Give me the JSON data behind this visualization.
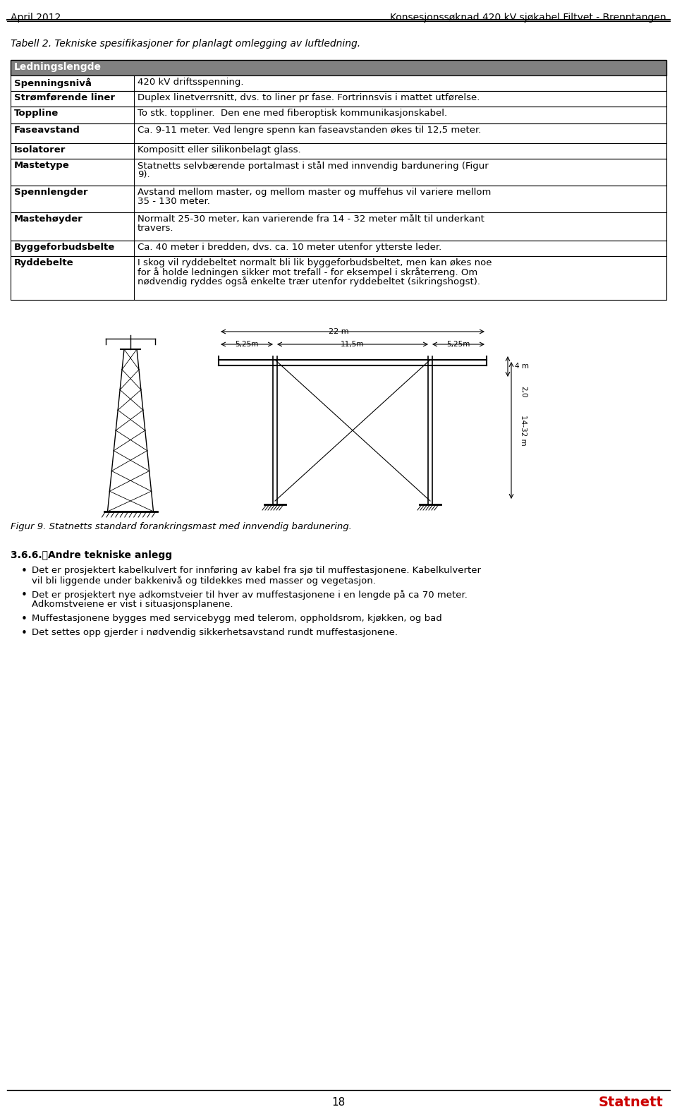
{
  "page_header_left": "April 2012",
  "page_header_right": "Konsesjonssøknad 420 kV sjøkabel Filtvet - Brenntangen",
  "table_caption": "Tabell 2. Tekniske spesifikasjoner for planlagt omlegging av luftledning.",
  "table_header": "Ledningslengde",
  "table_rows": [
    [
      "Spenningsnivå",
      "420 kV driftsspenning."
    ],
    [
      "Strømførende liner",
      "Duplex linetverrsnitt, dvs. to liner pr fase. Fortrinnsvis i mattet utførelse."
    ],
    [
      "Toppline",
      "To stk. toppliner.  Den ene med fiberoptisk kommunikasjonskabel."
    ],
    [
      "Faseavstand",
      "Ca. 9-11 meter. Ved lengre spenn kan faseavstanden økes til 12,5 meter."
    ],
    [
      "Isolatorer",
      "Kompositt eller silikonbelagt glass."
    ],
    [
      "Mastetype",
      "Statnetts selvbærende portalmast i stål med innvendig bardunering (Figur\n9)."
    ],
    [
      "Spennlengder",
      "Avstand mellom master, og mellom master og muffehus vil variere mellom\n35 - 130 meter."
    ],
    [
      "Mastehøyder",
      "Normalt 25-30 meter, kan varierende fra 14 - 32 meter målt til underkant\ntravers."
    ],
    [
      "Byggeforbudsbelte",
      "Ca. 40 meter i bredden, dvs. ca. 10 meter utenfor ytterste leder."
    ],
    [
      "Ryddebelte",
      "I skog vil ryddebeltet normalt bli lik byggeforbudsbeltet, men kan økes noe\nfor å holde ledningen sikker mot trefall - for eksempel i skråterreng. Om\nnødvendig ryddes også enkelte trær utenfor ryddebeltet (sikringshogst)."
    ]
  ],
  "figure_caption": "Figur 9. Statnetts standard forankringsmast med innvendig bardunering.",
  "section_header": "3.6.6.\tAndre tekniske anlegg",
  "bullets": [
    "Det er prosjektert kabelkulvert for innføring av kabel fra sjø til muffestasjonene. Kabelkulverter\nvil bli liggende under bakkenivå og tildekkes med masser og vegetasjon.",
    "Det er prosjektert nye adkomstveier til hver av muffestasjonene i en lengde på ca 70 meter.\nAdkomstveiene er vist i situasjonsplanene.",
    "Muffestasjonene bygges med servicebygg med telerom, oppholdsrom, kjøkken, og bad",
    "Det settes opp gjerder i nødvendig sikkerhetsavstand rundt muffestasjonene."
  ],
  "page_number": "18",
  "logo_text": "Statnett",
  "bg_color": "#ffffff",
  "header_bg": "#808080",
  "header_fg": "#ffffff",
  "row_bg1": "#ffffff",
  "row_bg2": "#ffffff",
  "border_color": "#000000",
  "text_color": "#000000"
}
